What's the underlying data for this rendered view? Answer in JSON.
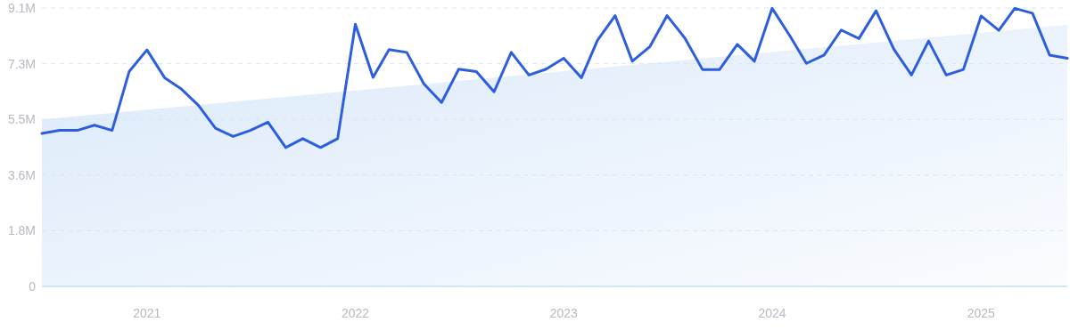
{
  "chart_data": {
    "type": "line",
    "x": [
      "2020-07",
      "2020-08",
      "2020-09",
      "2020-10",
      "2020-11",
      "2020-12",
      "2021-01",
      "2021-02",
      "2021-03",
      "2021-04",
      "2021-05",
      "2021-06",
      "2021-07",
      "2021-08",
      "2021-09",
      "2021-10",
      "2021-11",
      "2021-12",
      "2022-01",
      "2022-02",
      "2022-03",
      "2022-04",
      "2022-05",
      "2022-06",
      "2022-07",
      "2022-08",
      "2022-09",
      "2022-10",
      "2022-11",
      "2022-12",
      "2023-01",
      "2023-02",
      "2023-03",
      "2023-04",
      "2023-05",
      "2023-06",
      "2023-07",
      "2023-08",
      "2023-09",
      "2023-10",
      "2023-11",
      "2023-12",
      "2024-01",
      "2024-02",
      "2024-03",
      "2024-04",
      "2024-05",
      "2024-06",
      "2024-07",
      "2024-08",
      "2024-09",
      "2024-10",
      "2024-11",
      "2024-12",
      "2025-01",
      "2025-02",
      "2025-03",
      "2025-04",
      "2025-05",
      "2025-06"
    ],
    "series": [
      {
        "type": "area",
        "x": [
          "2020-07",
          "2025-06"
        ],
        "color": "#dbe9fa",
        "values": [
          5.46,
          8.55
        ]
      },
      {
        "color": "#2e5ee0",
        "values": [
          5.0,
          5.1,
          5.1,
          5.27,
          5.1,
          7.03,
          7.73,
          6.82,
          6.47,
          5.92,
          5.17,
          4.9,
          5.1,
          5.37,
          4.54,
          4.83,
          4.54,
          4.83,
          8.57,
          6.83,
          7.74,
          7.65,
          6.62,
          6.01,
          7.1,
          7.02,
          6.36,
          7.65,
          6.91,
          7.1,
          7.46,
          6.82,
          8.04,
          8.85,
          7.36,
          7.84,
          8.85,
          8.12,
          7.09,
          7.09,
          7.91,
          7.36,
          9.09,
          8.19,
          7.29,
          7.56,
          8.38,
          8.1,
          9.01,
          7.76,
          6.91,
          8.02,
          6.91,
          7.09,
          8.84,
          8.37,
          9.09,
          8.93,
          7.56,
          7.46
        ]
      }
    ],
    "xlim": [
      "2020-07",
      "2025-06"
    ],
    "xticks": [
      {
        "value": "2021-01",
        "label": "2021"
      },
      {
        "value": "2022-01",
        "label": "2022"
      },
      {
        "value": "2023-01",
        "label": "2023"
      },
      {
        "value": "2024-01",
        "label": "2024"
      },
      {
        "value": "2025-01",
        "label": "2025"
      }
    ],
    "ylim": [
      0,
      9.1
    ],
    "yticks": [
      {
        "value": 0,
        "label": "0"
      },
      {
        "value": 1.82,
        "label": "1.8M"
      },
      {
        "value": 3.64,
        "label": "3.6M"
      },
      {
        "value": 5.46,
        "label": "5.5M"
      },
      {
        "value": 7.28,
        "label": "7.3M"
      },
      {
        "value": 9.1,
        "label": "9.1M"
      }
    ],
    "grid": "y",
    "marker": "none",
    "line_style": "solid"
  }
}
